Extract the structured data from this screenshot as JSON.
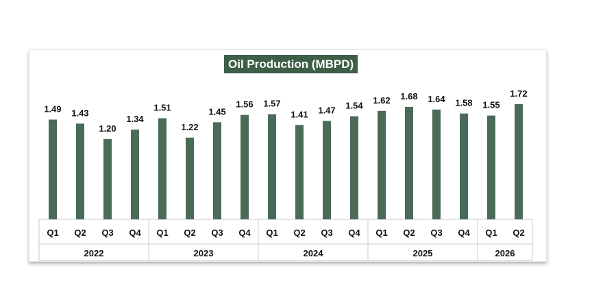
{
  "chart_data": {
    "type": "bar",
    "title": "Oil Production (MBPD)",
    "xlabel": "",
    "ylabel": "",
    "ylim": [
      0,
      1.72
    ],
    "grid": false,
    "legend": "none",
    "bar_color": "#4a6b57",
    "title_bg": "#3d5e47",
    "categories": [
      "Q1",
      "Q2",
      "Q3",
      "Q4",
      "Q1",
      "Q2",
      "Q3",
      "Q4",
      "Q1",
      "Q2",
      "Q3",
      "Q4",
      "Q1",
      "Q2",
      "Q3",
      "Q4",
      "Q1",
      "Q2"
    ],
    "groups": [
      {
        "label": "2022",
        "count": 4
      },
      {
        "label": "2023",
        "count": 4
      },
      {
        "label": "2024",
        "count": 4
      },
      {
        "label": "2025",
        "count": 4
      },
      {
        "label": "2026",
        "count": 2
      }
    ],
    "values": [
      1.49,
      1.43,
      1.2,
      1.34,
      1.51,
      1.22,
      1.45,
      1.56,
      1.57,
      1.41,
      1.47,
      1.54,
      1.62,
      1.68,
      1.64,
      1.58,
      1.55,
      1.72
    ],
    "value_labels": [
      "1.49",
      "1.43",
      "1.20",
      "1.34",
      "1.51",
      "1.22",
      "1.45",
      "1.56",
      "1.57",
      "1.41",
      "1.47",
      "1.54",
      "1.62",
      "1.68",
      "1.64",
      "1.58",
      "1.55",
      "1.72"
    ]
  }
}
